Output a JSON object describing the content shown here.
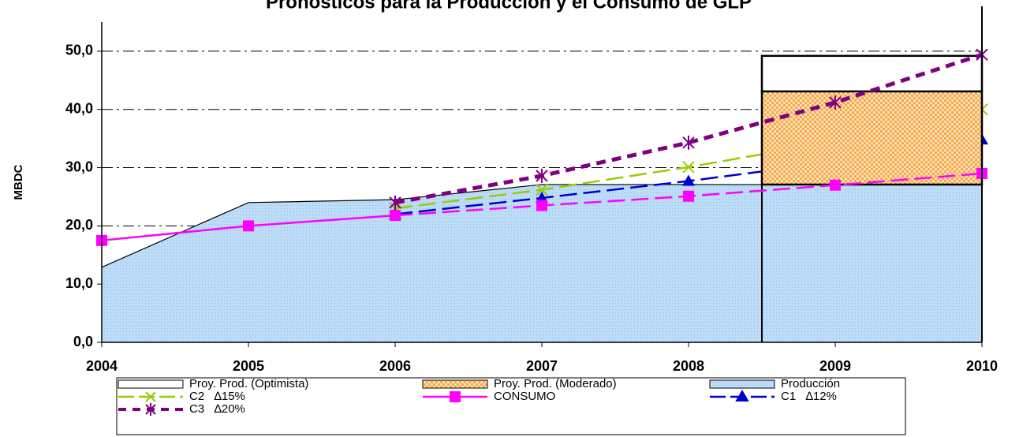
{
  "chart_data": {
    "type": "combo",
    "title": "Pronósticos para la Producción y el Consumo de GLP",
    "ylabel": "MBDC",
    "xlim": [
      2004,
      2010
    ],
    "xticks": [
      2004,
      2005,
      2006,
      2007,
      2008,
      2009,
      2010
    ],
    "ylim": [
      0,
      55
    ],
    "yticks": [
      {
        "value": 0,
        "label": "0,0"
      },
      {
        "value": 10,
        "label": "10,0"
      },
      {
        "value": 20,
        "label": "20,0"
      },
      {
        "value": 30,
        "label": "30,0"
      },
      {
        "value": 40,
        "label": "40,0"
      },
      {
        "value": 50,
        "label": "50,0"
      }
    ],
    "grid": true,
    "series": [
      {
        "name": "Proy. Prod. (Optimista)",
        "kind": "box",
        "color": "#ffffff",
        "x": [
          2008.5,
          2010
        ],
        "values": [
          6.1
        ]
      },
      {
        "name": "Proy. Prod. (Moderado)",
        "kind": "box",
        "color": "#f7a84a",
        "x": [
          2008.5,
          2010
        ],
        "values": [
          16.0
        ]
      },
      {
        "name": "Producción",
        "kind": "area",
        "color": "#b7d9f5",
        "x": [
          2004,
          2005,
          2006,
          2007,
          2008,
          2009,
          2010
        ],
        "values": [
          12.9,
          24.0,
          24.5,
          27.1,
          27.1,
          27.1,
          27.1
        ]
      },
      {
        "name": "C2   ∆15%",
        "kind": "line",
        "marker": "x",
        "color": "#99cc00",
        "x": [
          2006,
          2007,
          2008,
          2009,
          2010
        ],
        "values": [
          23.0,
          26.2,
          30.1,
          34.5,
          40.0
        ]
      },
      {
        "name": "CONSUMO",
        "kind": "line",
        "marker": "square",
        "color": "#ff00ff",
        "dashed_from": 2006,
        "x": [
          2004,
          2005,
          2006,
          2007,
          2008,
          2009,
          2010
        ],
        "values": [
          17.5,
          20.0,
          21.8,
          23.5,
          25.1,
          27.0,
          29.0
        ]
      },
      {
        "name": "C1   ∆12%",
        "kind": "line",
        "marker": "triangle",
        "color": "#0000cc",
        "x": [
          2006,
          2007,
          2008,
          2009,
          2010
        ],
        "values": [
          22.0,
          24.8,
          27.7,
          31.0,
          34.8
        ]
      },
      {
        "name": "C3   ∆20%",
        "kind": "line",
        "marker": "star",
        "color": "#800080",
        "x": [
          2006,
          2007,
          2008,
          2009,
          2010
        ],
        "values": [
          24.0,
          28.6,
          34.3,
          41.2,
          49.4
        ]
      }
    ]
  }
}
